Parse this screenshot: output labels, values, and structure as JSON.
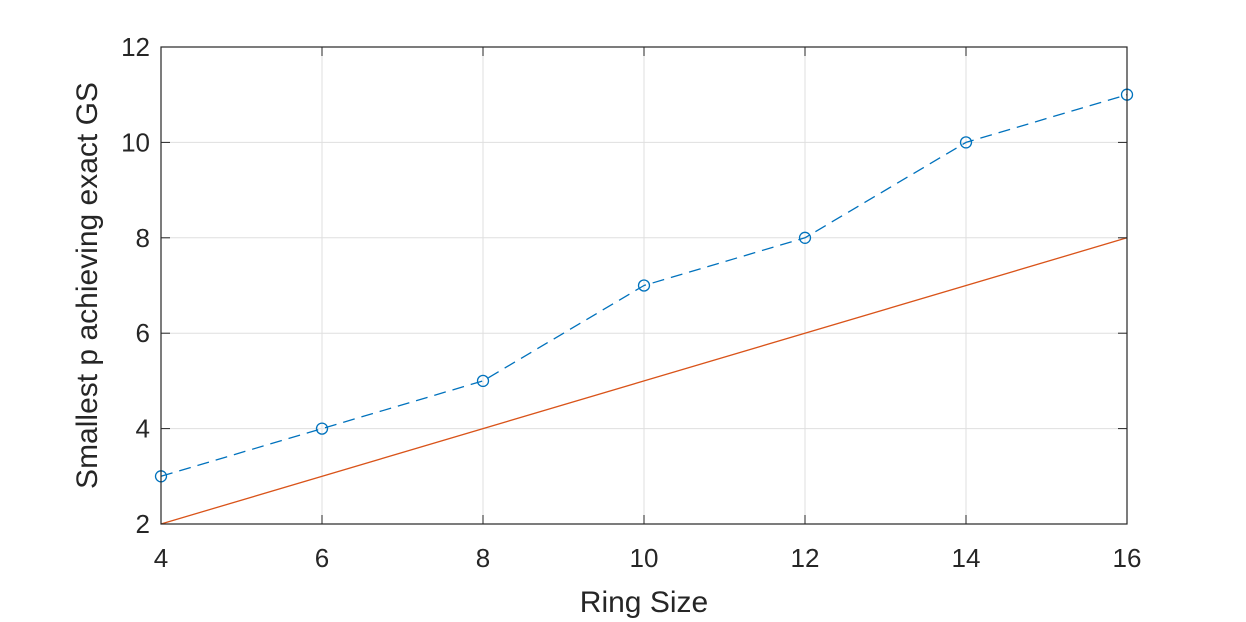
{
  "chart_data": {
    "type": "line",
    "title": "",
    "xlabel": "Ring Size",
    "ylabel": "Smallest p achieving exact GS",
    "xlim": [
      4,
      16
    ],
    "ylim": [
      2,
      12
    ],
    "xticks": [
      4,
      6,
      8,
      10,
      12,
      14,
      16
    ],
    "yticks": [
      2,
      4,
      6,
      8,
      10,
      12
    ],
    "grid": true,
    "legend": "none",
    "series": [
      {
        "x": [
          4,
          6,
          8,
          10,
          12,
          14,
          16
        ],
        "values": [
          3,
          4,
          5,
          7,
          8,
          10,
          11
        ],
        "color": "#0072BD",
        "line_style": "dashed",
        "marker": "circle"
      },
      {
        "x": [
          4,
          16
        ],
        "values": [
          2,
          8
        ],
        "color": "#D95319",
        "line_style": "solid",
        "marker": "none"
      }
    ]
  }
}
